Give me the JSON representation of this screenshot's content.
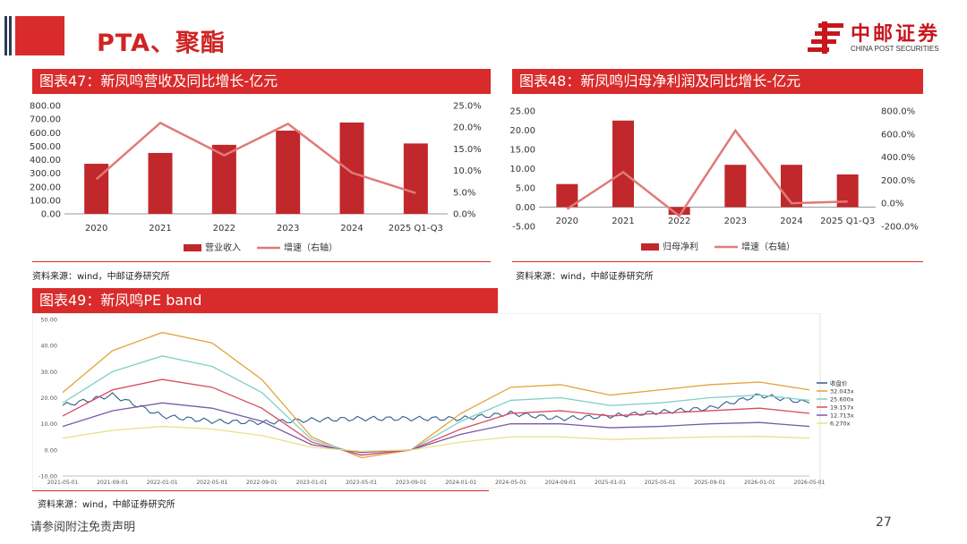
{
  "header": {
    "title": "PTA、聚酯"
  },
  "logo": {
    "cn": "中邮证券",
    "en": "CHINA POST SECURITIES"
  },
  "footer": {
    "disclaimer": "请参阅附注免责声明",
    "page": "27"
  },
  "figures": [
    {
      "title": "图表47：新凤鸣营收及同比增长-亿元",
      "source": "资料来源：wind，中邮证券研究所"
    },
    {
      "title": "图表48：新凤鸣归母净利润及同比增长-亿元",
      "source": "资料来源：wind，中邮证券研究所"
    },
    {
      "title": "图表49：新凤鸣PE band",
      "source": "资料来源：wind，中邮证券研究所"
    }
  ],
  "colors": {
    "accent": "#d92b2b",
    "bar": "#c0282b",
    "line": "#e07a7a"
  },
  "chart_data": [
    {
      "type": "bar",
      "categories": [
        "2020",
        "2021",
        "2022",
        "2023",
        "2024",
        "2025 Q1-Q3"
      ],
      "series": [
        {
          "name": "营业收入",
          "type": "bar",
          "axis": "left",
          "values": [
            370,
            450,
            510,
            615,
            675,
            520
          ]
        },
        {
          "name": "增速（右轴）",
          "type": "line",
          "axis": "right",
          "values": [
            8.0,
            21.0,
            13.5,
            20.8,
            9.5,
            4.8
          ]
        }
      ],
      "yticks_left": [
        "0.00",
        "100.00",
        "200.00",
        "300.00",
        "400.00",
        "500.00",
        "600.00",
        "700.00",
        "800.00"
      ],
      "yticks_right": [
        "0.0%",
        "5.0%",
        "10.0%",
        "15.0%",
        "20.0%",
        "25.0%"
      ],
      "ylim_left": [
        0,
        800
      ],
      "ylim_right": [
        0,
        25
      ],
      "legend": "bottom"
    },
    {
      "type": "bar",
      "categories": [
        "2020",
        "2021",
        "2022",
        "2023",
        "2024",
        "2025 Q1-Q3"
      ],
      "series": [
        {
          "name": "归母净利",
          "type": "bar",
          "axis": "left",
          "values": [
            6.0,
            22.5,
            -2.0,
            11.0,
            11.0,
            8.5
          ]
        },
        {
          "name": "增速（右轴）",
          "type": "line",
          "axis": "right",
          "values": [
            -50,
            270,
            -110,
            630,
            0,
            15
          ]
        }
      ],
      "yticks_left": [
        "-5.00",
        "0.00",
        "5.00",
        "10.00",
        "15.00",
        "20.00",
        "25.00"
      ],
      "yticks_right": [
        "-200.0%",
        "0.0%",
        "200.0%",
        "400.0%",
        "600.0%",
        "800.0%"
      ],
      "ylim_left": [
        -5,
        25
      ],
      "ylim_right": [
        -200,
        800
      ],
      "legend": "bottom"
    },
    {
      "type": "line",
      "x": [
        "2021-05-01",
        "2021-09-01",
        "2022-01-01",
        "2022-05-01",
        "2022-09-01",
        "2023-01-01",
        "2023-05-01",
        "2023-09-01",
        "2024-01-01",
        "2024-05-01",
        "2024-09-01",
        "2025-01-01",
        "2025-05-01",
        "2025-09-01",
        "2026-01-01",
        "2026-05-01"
      ],
      "yticks": [
        "-10.00",
        "0.00",
        "10.00",
        "20.00",
        "30.00",
        "40.00",
        "50.00"
      ],
      "ylim": [
        -10,
        50
      ],
      "legend": "right",
      "series": [
        {
          "name": "收盘价",
          "color": "#2f5d8a",
          "values": [
            17,
            21,
            13,
            11,
            10.5,
            11.5,
            12,
            12,
            12,
            14,
            12,
            13,
            14.5,
            16,
            21,
            18
          ]
        },
        {
          "name": "32.043x",
          "color": "#e3a33a",
          "values": [
            22,
            38,
            45,
            41,
            27,
            5,
            -3,
            0,
            14,
            24,
            25,
            21,
            23,
            25,
            26,
            23
          ]
        },
        {
          "name": "25.600x",
          "color": "#7fd0c8",
          "values": [
            18,
            30,
            36,
            32,
            22,
            4,
            -2,
            0,
            11,
            19,
            20,
            17,
            18,
            20,
            21,
            19
          ]
        },
        {
          "name": "19.157x",
          "color": "#d94b60",
          "values": [
            13,
            23,
            27,
            24,
            16,
            3,
            -2,
            0,
            8,
            14,
            15,
            13,
            14,
            15,
            16,
            14
          ]
        },
        {
          "name": "12.713x",
          "color": "#7a5aa8",
          "values": [
            9,
            15,
            18,
            16,
            11,
            2,
            -1,
            0,
            6,
            10,
            10,
            8.5,
            9,
            10,
            10.5,
            9
          ]
        },
        {
          "name": "6.270x",
          "color": "#e8e08a",
          "values": [
            4.5,
            7.5,
            9,
            8,
            5.5,
            1,
            -0.5,
            0,
            3,
            5,
            5,
            4,
            4.5,
            5,
            5.2,
            4.5
          ]
        }
      ]
    }
  ]
}
